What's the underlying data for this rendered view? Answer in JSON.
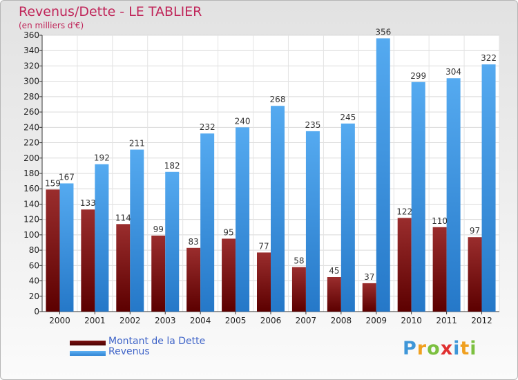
{
  "header": {
    "title": "Revenus/Dette - LE TABLIER",
    "subtitle": "(en milliers d'€)"
  },
  "chart_data": {
    "type": "bar",
    "categories": [
      "2000",
      "2001",
      "2002",
      "2003",
      "2004",
      "2005",
      "2006",
      "2007",
      "2008",
      "2009",
      "2010",
      "2011",
      "2012"
    ],
    "series": [
      {
        "name": "Montant de la Dette",
        "color": "#7a0a0a",
        "values": [
          159,
          133,
          114,
          99,
          83,
          95,
          77,
          58,
          45,
          37,
          122,
          110,
          97
        ]
      },
      {
        "name": "Revenus",
        "color": "#3b8fd9",
        "values": [
          167,
          192,
          211,
          182,
          232,
          240,
          268,
          235,
          245,
          356,
          299,
          304,
          322
        ]
      }
    ],
    "ylim": [
      0,
      360
    ],
    "yticks": [
      0,
      20,
      40,
      60,
      80,
      100,
      120,
      140,
      160,
      180,
      200,
      220,
      240,
      260,
      280,
      300,
      320,
      340,
      360
    ],
    "grid": true,
    "legend_position": "bottom-left"
  },
  "legend": {
    "items": [
      {
        "label": "Montant de la Dette",
        "color": "#7a0a0a"
      },
      {
        "label": "Revenus",
        "color": "#3b8fd9"
      }
    ]
  },
  "logo": {
    "letters": [
      "P",
      "r",
      "o",
      "x",
      "i",
      "t",
      "i"
    ],
    "colors": [
      "#3e96d8",
      "#f0a020",
      "#7cc040",
      "#e03030",
      "#3e96d8",
      "#f0a020",
      "#7cc040"
    ]
  }
}
